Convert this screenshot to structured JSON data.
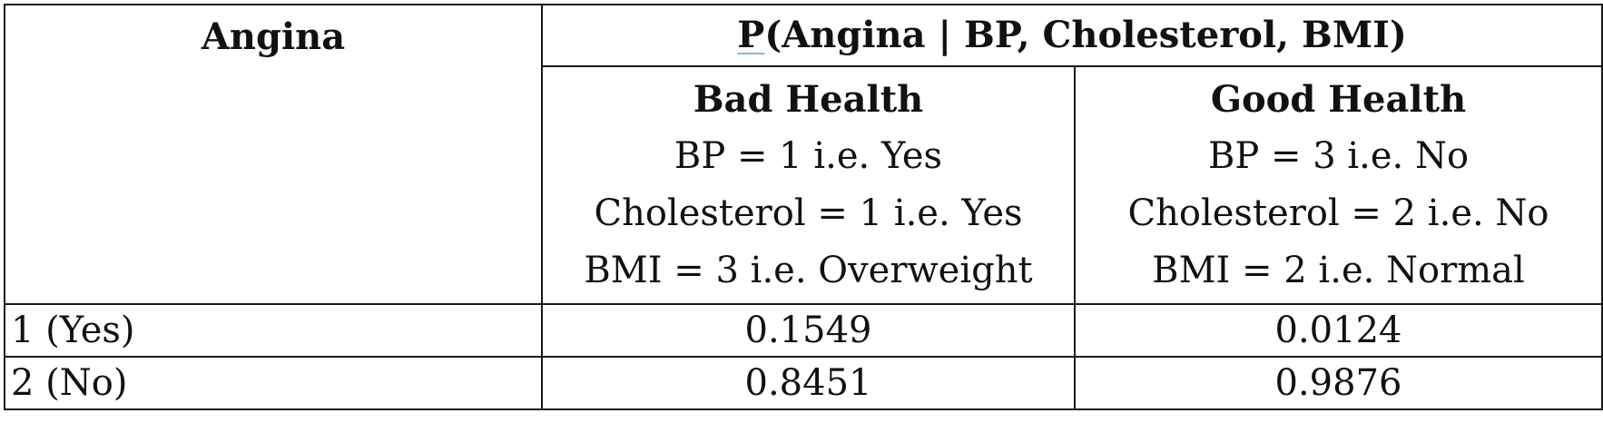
{
  "table": {
    "variable_header": "Angina",
    "prob_header": {
      "p_letter": "P",
      "rest": "(Angina | BP, Cholesterol, BMI)"
    },
    "conditions": [
      {
        "title": "Bad Health",
        "lines": [
          "BP = 1 i.e. Yes",
          "Cholesterol = 1 i.e. Yes",
          "BMI = 3 i.e. Overweight"
        ]
      },
      {
        "title": "Good Health",
        "lines": [
          "BP = 3 i.e. No",
          "Cholesterol = 2 i.e. No",
          "BMI = 2 i.e. Normal"
        ]
      }
    ],
    "rows": [
      {
        "label": "1 (Yes)",
        "values": [
          "0.1549",
          "0.0124"
        ]
      },
      {
        "label": "2 (No)",
        "values": [
          "0.8451",
          "0.9876"
        ]
      }
    ]
  }
}
